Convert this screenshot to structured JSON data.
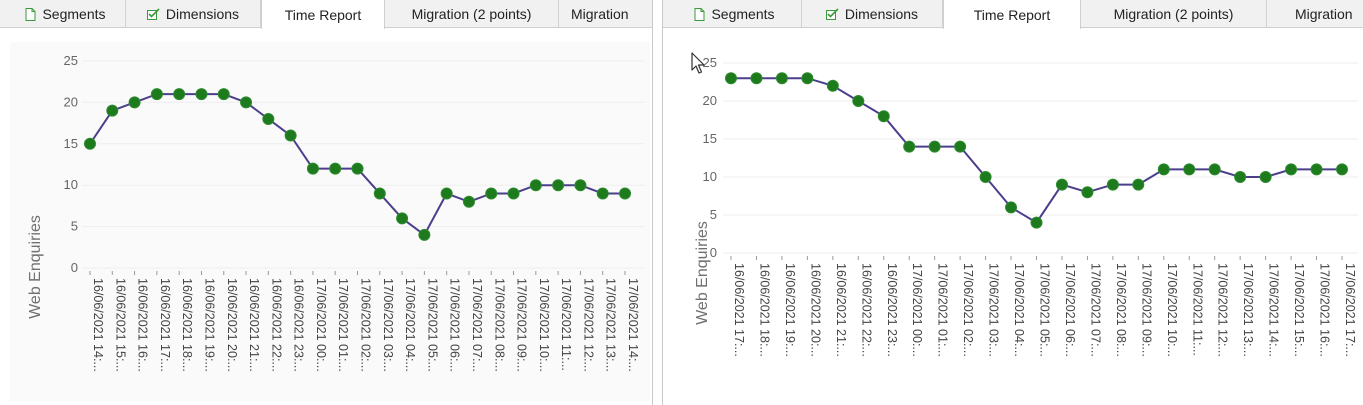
{
  "colors": {
    "line": "#4b3f8c",
    "marker": "#1d7a1d",
    "axis_text": "#666666",
    "grid": "#eeeeee"
  },
  "panels": [
    {
      "tabs": [
        {
          "label": "Segments",
          "icon": "document-icon",
          "active": false
        },
        {
          "label": "Dimensions",
          "icon": "checklist-icon",
          "active": false
        },
        {
          "label": "Time Report",
          "icon": "",
          "active": true
        },
        {
          "label": "Migration (2 points)",
          "icon": "",
          "active": false
        },
        {
          "label": "Migration",
          "icon": "",
          "active": false
        }
      ]
    },
    {
      "tabs": [
        {
          "label": "Segments",
          "icon": "document-icon",
          "active": false
        },
        {
          "label": "Dimensions",
          "icon": "checklist-icon",
          "active": false
        },
        {
          "label": "Time Report",
          "icon": "",
          "active": true
        },
        {
          "label": "Migration (2 points)",
          "icon": "",
          "active": false
        },
        {
          "label": "Migration",
          "icon": "",
          "active": false
        }
      ]
    }
  ],
  "chart_data": [
    {
      "type": "line",
      "ylabel": "Web Enquiries",
      "ylim": [
        0,
        25
      ],
      "yticks": [
        0,
        5,
        10,
        15,
        20,
        25
      ],
      "grid": true,
      "categories": [
        "16/06/2021 14:...",
        "16/06/2021 15:...",
        "16/06/2021 16:...",
        "16/06/2021 17:...",
        "16/06/2021 18:...",
        "16/06/2021 19:...",
        "16/06/2021 20:...",
        "16/06/2021 21:...",
        "16/06/2021 22:...",
        "16/06/2021 23:...",
        "17/06/2021 00:...",
        "17/06/2021 01:...",
        "17/06/2021 02:...",
        "17/06/2021 03:...",
        "17/06/2021 04:...",
        "17/06/2021 05:...",
        "17/06/2021 06:...",
        "17/06/2021 07:...",
        "17/06/2021 08:...",
        "17/06/2021 09:...",
        "17/06/2021 10:...",
        "17/06/2021 11:...",
        "17/06/2021 12:...",
        "17/06/2021 13:...",
        "17/06/2021 14:..."
      ],
      "values": [
        15,
        19,
        20,
        21,
        21,
        21,
        21,
        20,
        18,
        16,
        12,
        12,
        12,
        9,
        6,
        4,
        9,
        8,
        9,
        9,
        10,
        10,
        10,
        9,
        9
      ]
    },
    {
      "type": "line",
      "ylabel": "Web Enquiries",
      "ylim": [
        0,
        25
      ],
      "yticks": [
        0,
        5,
        10,
        15,
        20,
        25
      ],
      "grid": true,
      "categories": [
        "16/06/2021 17:...",
        "16/06/2021 18:...",
        "16/06/2021 19:...",
        "16/06/2021 20:...",
        "16/06/2021 21:...",
        "16/06/2021 22:...",
        "16/06/2021 23:...",
        "17/06/2021 00:...",
        "17/06/2021 01:...",
        "17/06/2021 02:...",
        "17/06/2021 03:...",
        "17/06/2021 04:...",
        "17/06/2021 05:...",
        "17/06/2021 06:...",
        "17/06/2021 07:...",
        "17/06/2021 08:...",
        "17/06/2021 09:...",
        "17/06/2021 10:...",
        "17/06/2021 11:...",
        "17/06/2021 12:...",
        "17/06/2021 13:...",
        "17/06/2021 14:...",
        "17/06/2021 15:...",
        "17/06/2021 16:...",
        "17/06/2021 17:..."
      ],
      "values": [
        23,
        23,
        23,
        23,
        22,
        20,
        18,
        14,
        14,
        14,
        10,
        6,
        4,
        9,
        8,
        9,
        9,
        11,
        11,
        11,
        10,
        10,
        11,
        11,
        11
      ]
    }
  ]
}
